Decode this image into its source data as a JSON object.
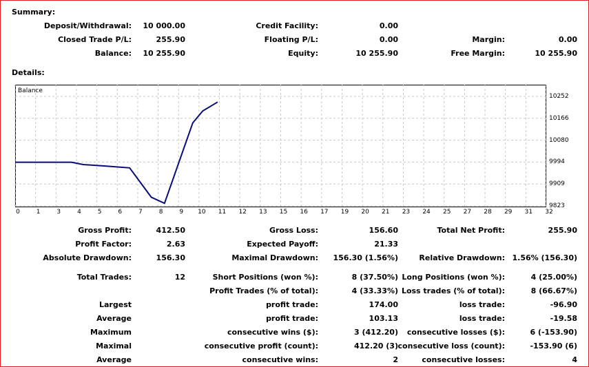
{
  "summary": {
    "title": "Summary:",
    "deposit_label": "Deposit/Withdrawal:",
    "deposit_value": "10 000.00",
    "credit_label": "Credit Facility:",
    "credit_value": "0.00",
    "closed_label": "Closed Trade P/L:",
    "closed_value": "255.90",
    "floating_label": "Floating P/L:",
    "floating_value": "0.00",
    "margin_label": "Margin:",
    "margin_value": "0.00",
    "balance_label": "Balance:",
    "balance_value": "10 255.90",
    "equity_label": "Equity:",
    "equity_value": "10 255.90",
    "free_margin_label": "Free Margin:",
    "free_margin_value": "10 255.90"
  },
  "details": {
    "title": "Details:"
  },
  "chart_data": {
    "type": "line",
    "title": "Balance",
    "xlabel": "",
    "ylabel": "",
    "x_ticks": [
      "0",
      "1",
      "3",
      "4",
      "5",
      "6",
      "7",
      "8",
      "9",
      "10",
      "11",
      "12",
      "13",
      "15",
      "16",
      "17",
      "19",
      "20",
      "21",
      "23",
      "24",
      "25",
      "27",
      "28",
      "29",
      "31",
      "32"
    ],
    "y_ticks": [
      "10252",
      "10166",
      "10080",
      "9994",
      "9909",
      "9823"
    ],
    "xlim": [
      0,
      32
    ],
    "ylim": [
      9823,
      10252
    ],
    "grid": true,
    "line_color": "#0a0a78",
    "series": [
      {
        "x": [
          0,
          1.9,
          3.4,
          4.1,
          5.5,
          6.9,
          8.2,
          9.0,
          10.7,
          11.3,
          12.2
        ],
        "y": [
          9994,
          9994,
          9994,
          9985,
          9979,
          9972,
          9857,
          9833,
          10148,
          10195,
          10230
        ]
      }
    ]
  },
  "stats": {
    "gross_profit_label": "Gross Profit:",
    "gross_profit_value": "412.50",
    "gross_loss_label": "Gross Loss:",
    "gross_loss_value": "156.60",
    "total_net_profit_label": "Total Net Profit:",
    "total_net_profit_value": "255.90",
    "profit_factor_label": "Profit Factor:",
    "profit_factor_value": "2.63",
    "expected_payoff_label": "Expected Payoff:",
    "expected_payoff_value": "21.33",
    "absolute_dd_label": "Absolute Drawdown:",
    "absolute_dd_value": "156.30",
    "maximal_dd_label": "Maximal Drawdown:",
    "maximal_dd_value": "156.30 (1.56%)",
    "relative_dd_label": "Relative Drawdown:",
    "relative_dd_value": "1.56% (156.30)",
    "total_trades_label": "Total Trades:",
    "total_trades_value": "12",
    "short_label": "Short Positions (won %):",
    "short_value": "8 (37.50%)",
    "long_label": "Long Positions (won %):",
    "long_value": "4 (25.00%)",
    "profit_trades_label": "Profit Trades (% of total):",
    "profit_trades_value": "4 (33.33%)",
    "loss_trades_label": "Loss trades (% of total):",
    "loss_trades_value": "8 (66.67%)",
    "largest_label": "Largest",
    "largest_profit_label": "profit trade:",
    "largest_profit_value": "174.00",
    "largest_loss_label": "loss trade:",
    "largest_loss_value": "-96.90",
    "average_label": "Average",
    "average_profit_label": "profit trade:",
    "average_profit_value": "103.13",
    "average_loss_label": "loss trade:",
    "average_loss_value": "-19.58",
    "maximum_label": "Maximum",
    "max_cons_wins_label": "consecutive wins ($):",
    "max_cons_wins_value": "3 (412.20)",
    "max_cons_losses_label": "consecutive losses ($):",
    "max_cons_losses_value": "6 (-153.90)",
    "maximal_label": "Maximal",
    "maximal_cons_profit_label": "consecutive profit (count):",
    "maximal_cons_profit_value": "412.20 (3)",
    "maximal_cons_loss_label": "consecutive loss (count):",
    "maximal_cons_loss_value": "-153.90 (6)",
    "average2_label": "Average",
    "avg_cons_wins_label": "consecutive wins:",
    "avg_cons_wins_value": "2",
    "avg_cons_losses_label": "consecutive losses:",
    "avg_cons_losses_value": "4"
  }
}
